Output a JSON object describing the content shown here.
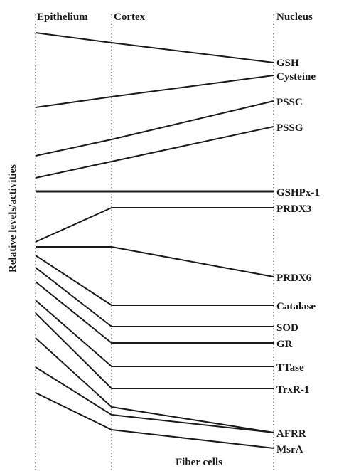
{
  "headers": {
    "epithelium": "Epithelium",
    "cortex": "Cortex",
    "nucleus": "Nucleus"
  },
  "y_axis_label": "Relative levels/activities",
  "x_axis_label": "Fiber cells",
  "markers": [
    {
      "label": "GSH"
    },
    {
      "label": "Cysteine"
    },
    {
      "label": "PSSC"
    },
    {
      "label": "PSSG"
    },
    {
      "label": "GSHPx-1"
    },
    {
      "label": "PRDX3"
    },
    {
      "label": "PRDX6"
    },
    {
      "label": "Catalase"
    },
    {
      "label": "SOD"
    },
    {
      "label": "GR"
    },
    {
      "label": "TTase"
    },
    {
      "label": "TrxR-1"
    },
    {
      "label": "AFRR"
    },
    {
      "label": "MsrA"
    }
  ]
}
